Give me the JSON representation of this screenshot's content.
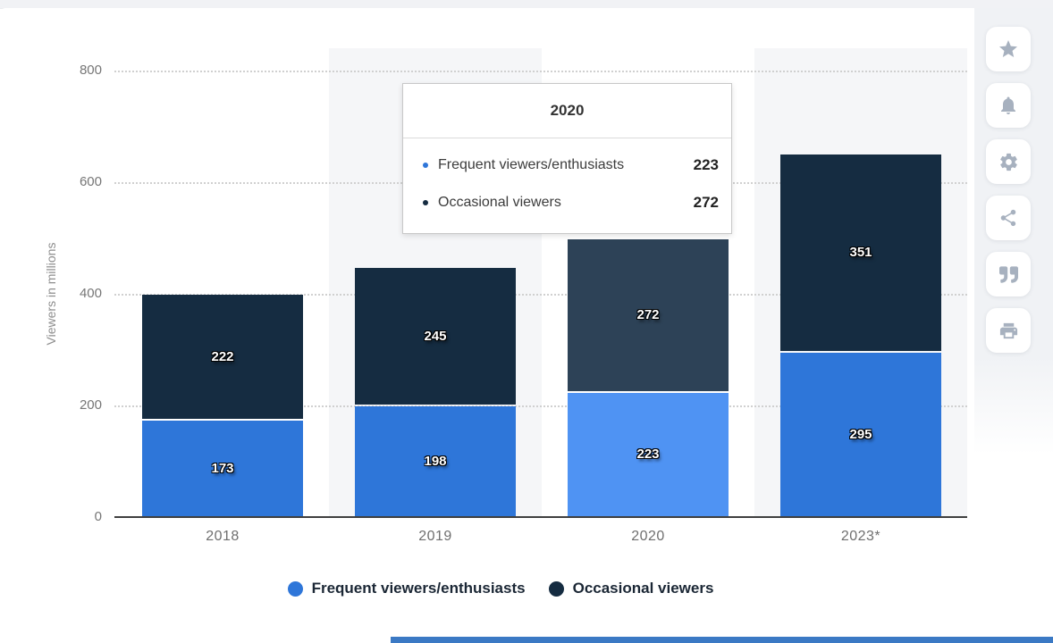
{
  "chart_data": {
    "type": "bar",
    "stacked": true,
    "title": "",
    "categories": [
      "2018",
      "2019",
      "2020",
      "2023*"
    ],
    "series": [
      {
        "name": "Frequent viewers/enthusiasts",
        "color": "#2e76d9",
        "hover_color": "#4f93f3",
        "values": [
          173,
          198,
          223,
          295
        ]
      },
      {
        "name": "Occasional viewers",
        "color": "#152c41",
        "hover_color": "#2d4257",
        "values": [
          222,
          245,
          272,
          351
        ]
      }
    ],
    "highlighted_category_index": 2,
    "xlabel": "",
    "ylabel": "Viewers in millions",
    "yticks": [
      0,
      200,
      400,
      600,
      800
    ],
    "ylim": [
      0,
      840
    ],
    "grid": "dotted-horizontal",
    "legend_position": "bottom",
    "plot_band_columns": [
      1,
      3
    ]
  },
  "yaxis": {
    "title": "Viewers in millions"
  },
  "tooltip": {
    "title": "2020",
    "rows": [
      {
        "label": "Frequent viewers/enthusiasts",
        "value": "223",
        "bullet_color": "#2e76d9"
      },
      {
        "label": "Occasional viewers",
        "value": "272",
        "bullet_color": "#152c41"
      }
    ]
  },
  "legend": {
    "items": [
      {
        "label": "Frequent viewers/enthusiasts",
        "color": "#2e76d9"
      },
      {
        "label": "Occasional viewers",
        "color": "#152c41"
      }
    ]
  },
  "toolbar": {
    "buttons": [
      "star-icon",
      "bell-icon",
      "gear-icon",
      "share-icon",
      "quote-icon",
      "print-icon"
    ]
  },
  "colors": {
    "band": "#f5f6f8",
    "grid": "#d0d0d0",
    "axis_line": "#3f3f3f",
    "tick_label": "#767676",
    "category_label": "#6f6f6f",
    "axis_title": "#8e8e8e",
    "legend_text": "#1b2735",
    "icon": "#a7b1bf",
    "strip": "#f1f2f5",
    "tooltip_border": "#c8c8c8",
    "bottom_accent": "#3b79c4"
  }
}
